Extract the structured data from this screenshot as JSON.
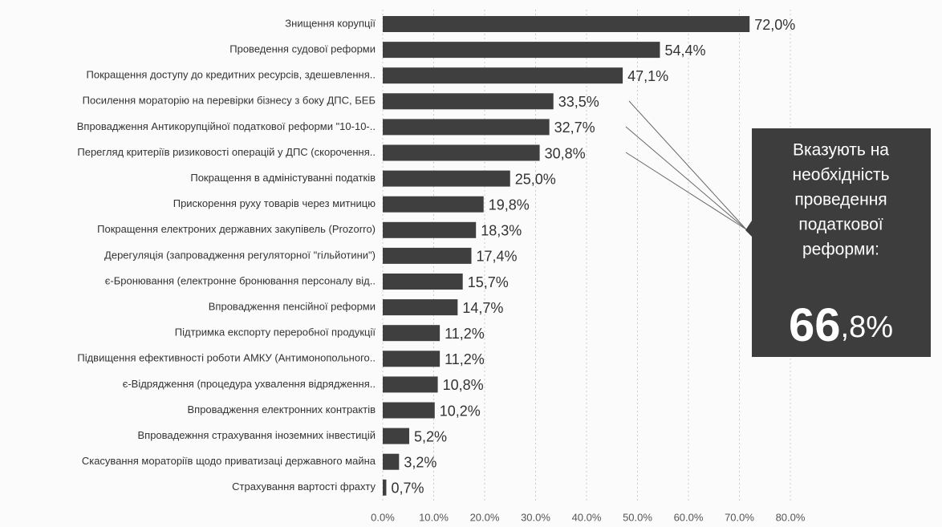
{
  "chart_data": {
    "type": "bar",
    "orientation": "horizontal",
    "categories": [
      "Знищення корупції",
      "Проведення судової реформи",
      "Покращення доступу до кредитних ресурсів, здешевлення..",
      "Посилення мораторію на перевірки бізнесу з боку ДПС, БЕБ",
      "Впровадження Антикорупційної податкової реформи \"10-10-..",
      "Перегляд критеріїв ризиковості операцій у ДПС (скорочення..",
      "Покращення в адміністуванні податків",
      "Прискорення руху товарів через митницю",
      "Покращення електроних державних закупівель (Prozorro)",
      "Дерегуляція (запровадження регуляторної \"гільйотини\")",
      "є-Бронювання (електронне бронювання персоналу від..",
      "Впровадження пенсійної реформи",
      "Підтримка експорту переробної продукції",
      "Підвищення ефективності роботи АМКУ (Антимонопольного..",
      "є-Відрядження (процедура ухвалення відрядження..",
      "Впровадження електронних контрактів",
      "Впровадежння страхування іноземних інвестицій",
      "Скасування мораторіїв щодо приватизаці державного майна",
      "Страхування вартості фрахту"
    ],
    "values": [
      72.0,
      54.4,
      47.1,
      33.5,
      32.7,
      30.8,
      25.0,
      19.8,
      18.3,
      17.4,
      15.7,
      14.7,
      11.2,
      11.2,
      10.8,
      10.2,
      5.2,
      3.2,
      0.7
    ],
    "value_labels": [
      "72,0%",
      "54,4%",
      "47,1%",
      "33,5%",
      "32,7%",
      "30,8%",
      "25,0%",
      "19,8%",
      "18,3%",
      "17,4%",
      "15,7%",
      "14,7%",
      "11,2%",
      "11,2%",
      "10,8%",
      "10,2%",
      "5,2%",
      "3,2%",
      "0,7%"
    ],
    "color": "#3f3f3f",
    "xlim": [
      0,
      80
    ],
    "xticks": [
      {
        "value": 0,
        "label": "0.0%"
      },
      {
        "value": 10,
        "label": "10.0%"
      },
      {
        "value": 20,
        "label": "20.0%"
      },
      {
        "value": 30,
        "label": "30.0%"
      },
      {
        "value": 40,
        "label": "40.0%"
      },
      {
        "value": 50,
        "label": "50.0%"
      },
      {
        "value": 60,
        "label": "60.0%"
      },
      {
        "value": 70,
        "label": "70.0%"
      },
      {
        "value": 80,
        "label": "80.0%"
      }
    ],
    "grid": true,
    "callout": {
      "text": [
        "Вказують на",
        "необхідність",
        "проведення",
        "податкової",
        "реформи:"
      ],
      "value": [
        "66",
        ",8%"
      ]
    }
  }
}
